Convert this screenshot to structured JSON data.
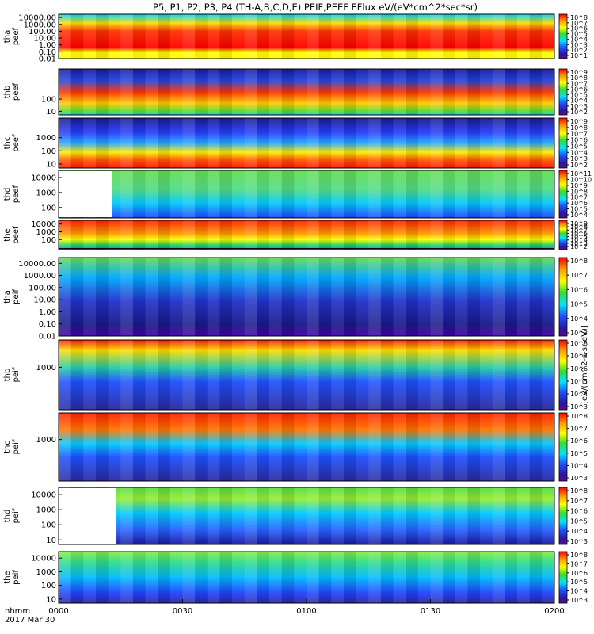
{
  "chart_data": {
    "type": "heatmap",
    "title": "P5, P1, P2, P3, P4 (TH-A,B,C,D,E) PEIF,PEEF EFlux eV/(eV*cm^2*sec*sr)",
    "x_axis": {
      "ticks": [
        "0000",
        "0030",
        "0100",
        "0130",
        "0200"
      ],
      "label_line1": "hhmm",
      "label_line2": "2017 Mar 30",
      "range": [
        "00:00",
        "02:00"
      ]
    },
    "colorbar_label": "[eV/(cm^2-s-sr-eV)]",
    "colorscale": "rainbow (violet-blue-cyan-green-yellow-red)",
    "panels": [
      {
        "name": "tha peef",
        "line1": "tha",
        "line2": "peef",
        "y_scale": "log",
        "yticks": [
          "10000.00",
          "1000.00",
          "100.00",
          "10.00",
          "1.00",
          "0.10",
          "0.01"
        ],
        "y_range": [
          0.01,
          30000
        ],
        "colorbar_ticks": [
          "10^8",
          "10^7",
          "10^6",
          "10^5",
          "10^4",
          "10^3",
          "10^2",
          "10^1"
        ],
        "has_trace": true
      },
      {
        "name": "thb peef",
        "line1": "thb",
        "line2": "peef",
        "y_scale": "log",
        "yticks": [
          "100",
          "10"
        ],
        "y_range": [
          5,
          30000
        ],
        "colorbar_ticks": [
          "10^9",
          "10^8",
          "10^7",
          "10^6",
          "10^5",
          "10^4",
          "10^3",
          "10^2"
        ]
      },
      {
        "name": "thc peef",
        "line1": "thc",
        "line2": "peef",
        "y_scale": "log",
        "yticks": [
          "1000",
          "100",
          "10"
        ],
        "y_range": [
          5,
          30000
        ],
        "colorbar_ticks": [
          "10^9",
          "10^8",
          "10^7",
          "10^6",
          "10^5",
          "10^4",
          "10^3",
          "10^2"
        ]
      },
      {
        "name": "thd peef",
        "line1": "thd",
        "line2": "peef",
        "y_scale": "log",
        "yticks": [
          "10000",
          "1000",
          "100"
        ],
        "y_range": [
          20,
          30000
        ],
        "colorbar_ticks": [
          "10^11",
          "10^10",
          "10^9",
          "10^8",
          "10^7",
          "10^6",
          "10^5",
          "10^4"
        ],
        "data_start": "00:13"
      },
      {
        "name": "the peef",
        "line1": "the",
        "line2": "peef",
        "y_scale": "log",
        "yticks": [
          "10000",
          "1000",
          "100"
        ],
        "y_range": [
          5,
          30000
        ],
        "colorbar_ticks": [
          "10^9",
          "10^8",
          "10^7",
          "10^6",
          "10^5",
          "10^4",
          "10^3",
          "10^2"
        ],
        "has_trace": true
      },
      {
        "name": "tha peif",
        "line1": "tha",
        "line2": "peif",
        "y_scale": "log",
        "yticks": [
          "10000.00",
          "1000.00",
          "100.00",
          "10.00",
          "1.00",
          "0.10",
          "0.01"
        ],
        "y_range": [
          0.01,
          30000
        ],
        "colorbar_ticks": [
          "10^8",
          "10^7",
          "10^6",
          "10^5",
          "10^4",
          "10^3"
        ]
      },
      {
        "name": "thb peif",
        "line1": "thb",
        "line2": "peif",
        "y_scale": "log",
        "yticks": [
          "1000"
        ],
        "y_range": [
          5,
          30000
        ],
        "colorbar_ticks": [
          "10^8",
          "10^7",
          "10^6",
          "10^5",
          "10^4",
          "10^3"
        ]
      },
      {
        "name": "thc peif",
        "line1": "thc",
        "line2": "peif",
        "y_scale": "log",
        "yticks": [
          "1000"
        ],
        "y_range": [
          5,
          30000
        ],
        "colorbar_ticks": [
          "10^8",
          "10^7",
          "10^6",
          "10^5",
          "10^4",
          "10^3"
        ]
      },
      {
        "name": "thd peif",
        "line1": "thd",
        "line2": "peif",
        "y_scale": "log",
        "yticks": [
          "10000",
          "1000",
          "100",
          "10"
        ],
        "y_range": [
          5,
          30000
        ],
        "colorbar_ticks": [
          "10^8",
          "10^7",
          "10^6",
          "10^5",
          "10^4",
          "10^3"
        ],
        "data_start": "00:14"
      },
      {
        "name": "the peif",
        "line1": "the",
        "line2": "peif",
        "y_scale": "log",
        "yticks": [
          "10000",
          "1000",
          "100",
          "10"
        ],
        "y_range": [
          5,
          30000
        ],
        "colorbar_ticks": [
          "10^8",
          "10^7",
          "10^6",
          "10^5",
          "10^4",
          "10^3"
        ]
      }
    ]
  }
}
